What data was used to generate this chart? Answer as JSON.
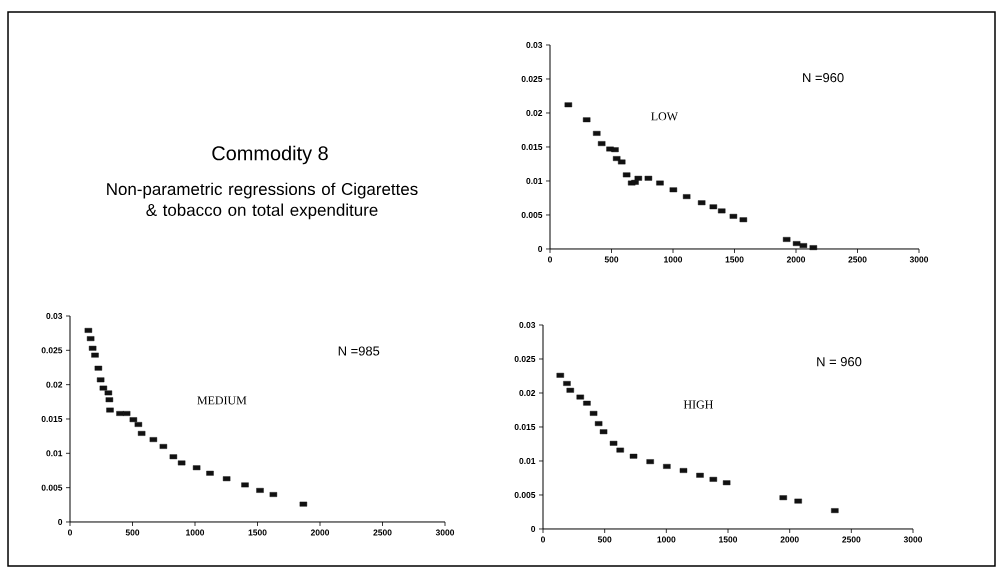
{
  "chart_data": [
    {
      "type": "other",
      "title": "Commodity 8",
      "subtitle": "Non-parametric regressions of Cigarettes & tobacco on total expenditure"
    },
    {
      "type": "scatter",
      "color": "#111111",
      "marker": "square",
      "xlim": [
        0,
        3000
      ],
      "ylim": [
        0,
        0.03
      ],
      "xticks": [
        0,
        500,
        1000,
        1500,
        2000,
        2500,
        3000
      ],
      "yticks": [
        0,
        0.005,
        0.01,
        0.015,
        0.02,
        0.025,
        0.03
      ],
      "annotations": [
        "N =960",
        "LOW"
      ],
      "x": [
        149,
        298,
        380,
        420,
        488,
        528,
        542,
        583,
        623,
        664,
        691,
        718,
        800,
        894,
        1003,
        1111,
        1233,
        1328,
        1396,
        1491,
        1572,
        1924,
        2005,
        2060,
        2141
      ],
      "values": [
        0.0212,
        0.019,
        0.017,
        0.0155,
        0.0147,
        0.0146,
        0.0133,
        0.0128,
        0.0109,
        0.0097,
        0.0098,
        0.0104,
        0.0104,
        0.0097,
        0.0087,
        0.0077,
        0.0068,
        0.0062,
        0.0056,
        0.0048,
        0.0043,
        0.0014,
        0.0008,
        0.0005,
        0.0002
      ]
    },
    {
      "type": "scatter",
      "color": "#111111",
      "marker": "square",
      "xlim": [
        0,
        3000
      ],
      "ylim": [
        0,
        0.03
      ],
      "xticks": [
        0,
        500,
        1000,
        1500,
        2000,
        2500,
        3000
      ],
      "yticks": [
        0,
        0.005,
        0.01,
        0.015,
        0.02,
        0.025,
        0.03
      ],
      "annotations": [
        "N =985",
        "MEDIUM"
      ],
      "x": [
        147,
        165,
        181,
        200,
        227,
        245,
        267,
        307,
        315,
        320,
        400,
        453,
        507,
        547,
        573,
        667,
        747,
        827,
        893,
        1013,
        1120,
        1253,
        1400,
        1520,
        1627,
        1867
      ],
      "values": [
        0.0279,
        0.0267,
        0.0253,
        0.0243,
        0.0224,
        0.0207,
        0.0195,
        0.0188,
        0.0178,
        0.0163,
        0.0158,
        0.0158,
        0.0149,
        0.0142,
        0.0129,
        0.012,
        0.011,
        0.0095,
        0.0086,
        0.0079,
        0.0071,
        0.0063,
        0.0054,
        0.0046,
        0.004,
        0.0026
      ]
    },
    {
      "type": "scatter",
      "color": "#111111",
      "marker": "square",
      "xlim": [
        0,
        3000
      ],
      "ylim": [
        0,
        0.03
      ],
      "xticks": [
        0,
        500,
        1000,
        1500,
        2000,
        2500,
        3000
      ],
      "yticks": [
        0,
        0.005,
        0.01,
        0.015,
        0.02,
        0.025,
        0.03
      ],
      "annotations": [
        "N = 960",
        "HIGH"
      ],
      "x": [
        140,
        194,
        221,
        302,
        356,
        410,
        451,
        491,
        572,
        626,
        734,
        869,
        1004,
        1139,
        1273,
        1381,
        1489,
        1948,
        2069,
        2366
      ],
      "values": [
        0.0226,
        0.0214,
        0.0204,
        0.0194,
        0.0185,
        0.017,
        0.0155,
        0.0143,
        0.0126,
        0.0116,
        0.0107,
        0.0099,
        0.0092,
        0.0086,
        0.0079,
        0.0073,
        0.0068,
        0.0046,
        0.0041,
        0.0027
      ]
    }
  ]
}
